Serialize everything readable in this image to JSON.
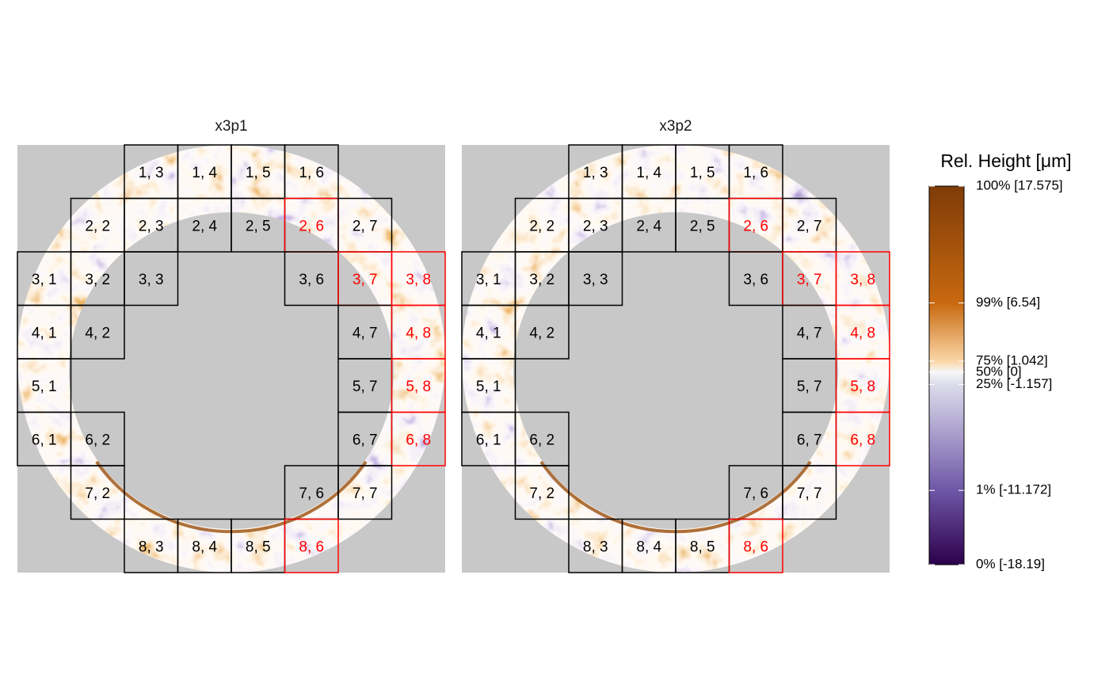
{
  "panels": [
    {
      "title": "x3p1",
      "cells": [
        {
          "label": "1, 3",
          "color": "#000000"
        },
        {
          "label": "1, 4",
          "color": "#000000"
        },
        {
          "label": "1, 5",
          "color": "#000000"
        },
        {
          "label": "1, 6",
          "color": "#000000"
        },
        {
          "label": "2, 2",
          "color": "#000000"
        },
        {
          "label": "2, 3",
          "color": "#000000"
        },
        {
          "label": "2, 4",
          "color": "#000000"
        },
        {
          "label": "2, 5",
          "color": "#000000"
        },
        {
          "label": "2, 6",
          "color": "#ff0000"
        },
        {
          "label": "2, 7",
          "color": "#000000"
        },
        {
          "label": "3, 1",
          "color": "#000000"
        },
        {
          "label": "3, 2",
          "color": "#000000"
        },
        {
          "label": "3, 3",
          "color": "#000000"
        },
        {
          "label": "3, 6",
          "color": "#000000"
        },
        {
          "label": "3, 7",
          "color": "#ff0000"
        },
        {
          "label": "3, 8",
          "color": "#ff0000"
        },
        {
          "label": "4, 1",
          "color": "#000000"
        },
        {
          "label": "4, 2",
          "color": "#000000"
        },
        {
          "label": "4, 7",
          "color": "#000000"
        },
        {
          "label": "4, 8",
          "color": "#ff0000"
        },
        {
          "label": "5, 1",
          "color": "#000000"
        },
        {
          "label": "5, 7",
          "color": "#000000"
        },
        {
          "label": "5, 8",
          "color": "#ff0000"
        },
        {
          "label": "6, 1",
          "color": "#000000"
        },
        {
          "label": "6, 2",
          "color": "#000000"
        },
        {
          "label": "6, 7",
          "color": "#000000"
        },
        {
          "label": "6, 8",
          "color": "#ff0000"
        },
        {
          "label": "7, 2",
          "color": "#000000"
        },
        {
          "label": "7, 6",
          "color": "#000000"
        },
        {
          "label": "7, 7",
          "color": "#000000"
        },
        {
          "label": "8, 3",
          "color": "#000000"
        },
        {
          "label": "8, 4",
          "color": "#000000"
        },
        {
          "label": "8, 5",
          "color": "#000000"
        },
        {
          "label": "8, 6",
          "color": "#ff0000"
        }
      ]
    },
    {
      "title": "x3p2",
      "cells": [
        {
          "label": "1, 3",
          "color": "#000000"
        },
        {
          "label": "1, 4",
          "color": "#000000"
        },
        {
          "label": "1, 5",
          "color": "#000000"
        },
        {
          "label": "1, 6",
          "color": "#000000"
        },
        {
          "label": "2, 2",
          "color": "#000000"
        },
        {
          "label": "2, 3",
          "color": "#000000"
        },
        {
          "label": "2, 4",
          "color": "#000000"
        },
        {
          "label": "2, 5",
          "color": "#000000"
        },
        {
          "label": "2, 6",
          "color": "#ff0000"
        },
        {
          "label": "2, 7",
          "color": "#000000"
        },
        {
          "label": "3, 1",
          "color": "#000000"
        },
        {
          "label": "3, 2",
          "color": "#000000"
        },
        {
          "label": "3, 3",
          "color": "#000000"
        },
        {
          "label": "3, 6",
          "color": "#000000"
        },
        {
          "label": "3, 7",
          "color": "#ff0000"
        },
        {
          "label": "3, 8",
          "color": "#ff0000"
        },
        {
          "label": "4, 1",
          "color": "#000000"
        },
        {
          "label": "4, 2",
          "color": "#000000"
        },
        {
          "label": "4, 7",
          "color": "#000000"
        },
        {
          "label": "4, 8",
          "color": "#ff0000"
        },
        {
          "label": "5, 1",
          "color": "#000000"
        },
        {
          "label": "5, 7",
          "color": "#000000"
        },
        {
          "label": "5, 8",
          "color": "#ff0000"
        },
        {
          "label": "6, 1",
          "color": "#000000"
        },
        {
          "label": "6, 2",
          "color": "#000000"
        },
        {
          "label": "6, 7",
          "color": "#000000"
        },
        {
          "label": "6, 8",
          "color": "#ff0000"
        },
        {
          "label": "7, 2",
          "color": "#000000"
        },
        {
          "label": "7, 6",
          "color": "#000000"
        },
        {
          "label": "7, 7",
          "color": "#000000"
        },
        {
          "label": "8, 3",
          "color": "#000000"
        },
        {
          "label": "8, 4",
          "color": "#000000"
        },
        {
          "label": "8, 5",
          "color": "#000000"
        },
        {
          "label": "8, 6",
          "color": "#ff0000"
        }
      ]
    }
  ],
  "legend": {
    "title": "Rel. Height [μm]",
    "lim": [
      -18.19,
      17.575
    ],
    "ticks": [
      {
        "value": 17.575,
        "label": "100% [17.575]",
        "color": "#7f3b08"
      },
      {
        "value": 6.54,
        "label": "99% [6.54]",
        "color": "#c8690f"
      },
      {
        "value": 1.042,
        "label": "75% [1.042]",
        "color": "#fbd6a6"
      },
      {
        "value": 0,
        "label": "50% [0]",
        "color": "#f7f7f7"
      },
      {
        "value": -1.157,
        "label": "25% [-1.157]",
        "color": "#dcdcec"
      },
      {
        "value": -11.172,
        "label": "1% [-11.172]",
        "color": "#6e56a6"
      },
      {
        "value": -18.19,
        "label": "0% [-18.19]",
        "color": "#2d004b"
      }
    ]
  }
}
